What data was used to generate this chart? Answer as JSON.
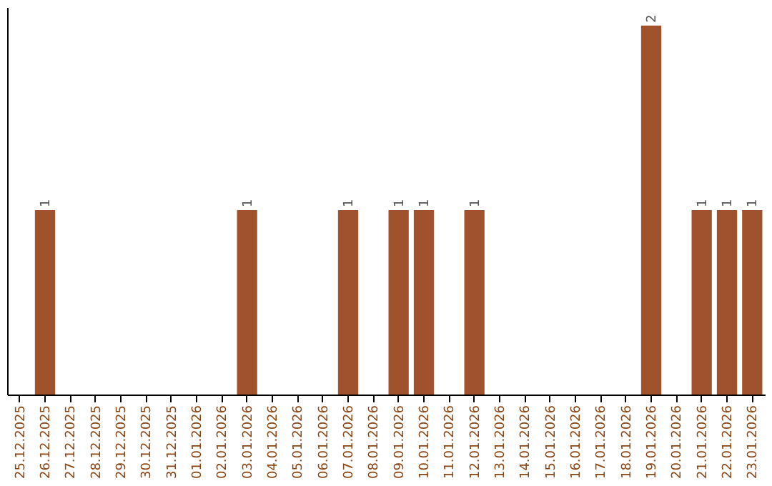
{
  "chart_data": {
    "type": "bar",
    "categories": [
      "25.12.2025",
      "26.12.2025",
      "27.12.2025",
      "28.12.2025",
      "29.12.2025",
      "30.12.2025",
      "31.12.2025",
      "01.01.2026",
      "02.01.2026",
      "03.01.2026",
      "04.01.2026",
      "05.01.2026",
      "06.01.2026",
      "07.01.2026",
      "08.01.2026",
      "09.01.2026",
      "10.01.2026",
      "11.01.2026",
      "12.01.2026",
      "13.01.2026",
      "14.01.2026",
      "15.01.2026",
      "16.01.2026",
      "17.01.2026",
      "18.01.2026",
      "19.01.2026",
      "20.01.2026",
      "21.01.2026",
      "22.01.2026",
      "23.01.2026"
    ],
    "values": [
      0,
      1,
      0,
      0,
      0,
      0,
      0,
      0,
      0,
      1,
      0,
      0,
      0,
      1,
      0,
      1,
      1,
      0,
      1,
      0,
      0,
      0,
      0,
      0,
      0,
      2,
      0,
      1,
      1,
      1
    ],
    "value_labels": [
      null,
      "1",
      null,
      null,
      null,
      null,
      null,
      null,
      null,
      "1",
      null,
      null,
      null,
      "1",
      null,
      "1",
      "1",
      null,
      "1",
      null,
      null,
      null,
      null,
      null,
      null,
      "2",
      null,
      "1",
      "1",
      "1"
    ],
    "color": "#a0522d",
    "tick_labels": "x",
    "grid": false
  }
}
